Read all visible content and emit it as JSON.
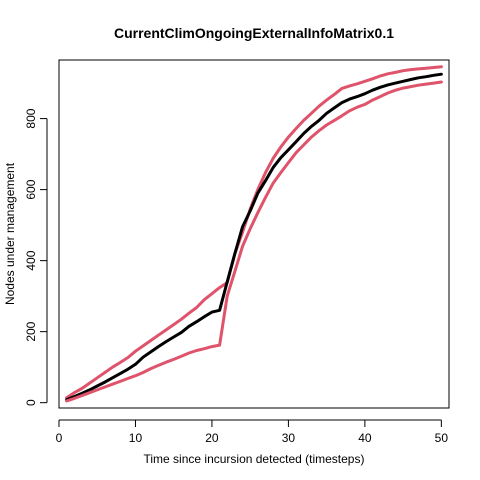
{
  "chart_data": {
    "type": "line",
    "title": "CurrentClimOngoingExternalInfoMatrix0.1",
    "xlabel": "Time since incursion detected (timesteps)",
    "ylabel": "Nodes under management",
    "xlim": [
      0,
      51
    ],
    "ylim": [
      -15,
      965
    ],
    "xticks": [
      0,
      10,
      20,
      30,
      40,
      50
    ],
    "yticks": [
      0,
      200,
      400,
      600,
      800
    ],
    "grid": false,
    "legend": "none",
    "x": [
      1,
      2,
      3,
      4,
      5,
      6,
      7,
      8,
      9,
      10,
      11,
      12,
      13,
      14,
      15,
      16,
      17,
      18,
      19,
      20,
      21,
      22,
      23,
      24,
      25,
      26,
      27,
      28,
      29,
      30,
      31,
      32,
      33,
      34,
      35,
      36,
      37,
      38,
      39,
      40,
      41,
      42,
      43,
      44,
      45,
      46,
      47,
      48,
      49,
      50
    ],
    "series": [
      {
        "color": "#DF536B",
        "values": [
          14,
          28,
          40,
          55,
          70,
          85,
          100,
          113,
          127,
          145,
          160,
          175,
          190,
          205,
          220,
          235,
          252,
          268,
          290,
          307,
          324,
          338,
          420,
          480,
          545,
          600,
          648,
          688,
          720,
          748,
          772,
          795,
          815,
          835,
          852,
          868,
          885,
          892,
          898,
          905,
          912,
          920,
          926,
          930,
          935,
          938,
          940,
          942,
          944,
          946
        ]
      },
      {
        "color": "#000000",
        "values": [
          8,
          17,
          26,
          36,
          47,
          58,
          70,
          82,
          94,
          108,
          128,
          143,
          158,
          172,
          185,
          198,
          215,
          228,
          242,
          255,
          260,
          340,
          420,
          495,
          540,
          590,
          625,
          662,
          690,
          712,
          735,
          758,
          778,
          795,
          815,
          830,
          845,
          855,
          862,
          870,
          880,
          888,
          895,
          900,
          905,
          910,
          915,
          918,
          922,
          925
        ]
      },
      {
        "color": "#DF536B",
        "values": [
          5,
          12,
          20,
          28,
          36,
          44,
          52,
          60,
          68,
          76,
          85,
          96,
          105,
          114,
          122,
          131,
          140,
          147,
          152,
          158,
          162,
          300,
          370,
          440,
          490,
          535,
          578,
          618,
          648,
          676,
          704,
          726,
          748,
          766,
          782,
          795,
          808,
          822,
          832,
          840,
          852,
          862,
          872,
          880,
          886,
          890,
          894,
          897,
          900,
          903
        ]
      }
    ]
  }
}
